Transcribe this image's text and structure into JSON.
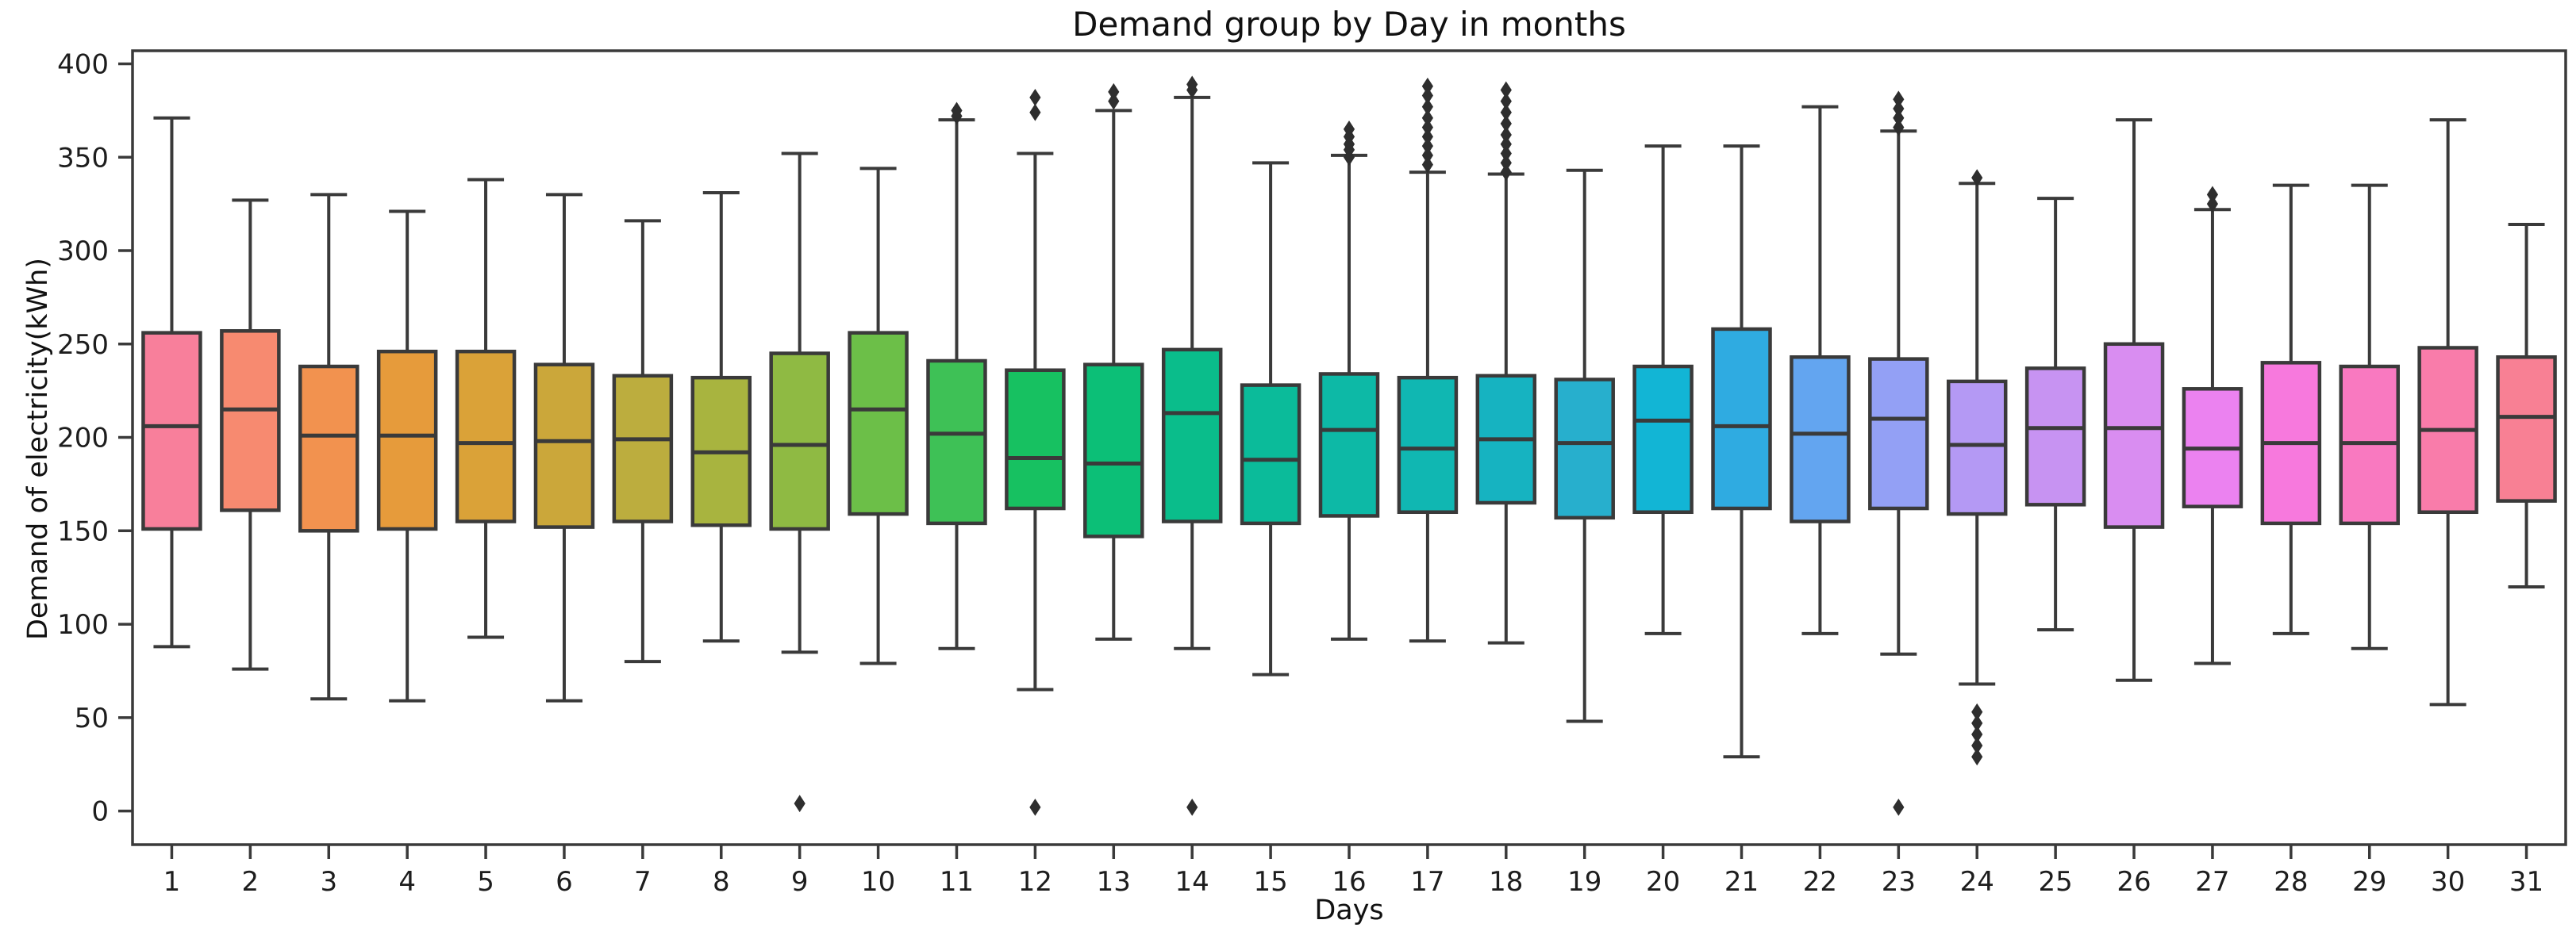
{
  "title": "Demand group by Day in months",
  "axes": {
    "xlabel": "Days",
    "ylabel": "Demand of electricity(kWh)"
  },
  "styles": {
    "background": "#ffffff",
    "spine_color": "#3a3a3a",
    "line_color": "#3a3a3a",
    "flier_color": "#2e2e2e",
    "tick_label_color": "#1d1d1d"
  },
  "chart_data": {
    "type": "boxplot",
    "title": "Demand group by Day in months",
    "xlabel": "Days",
    "ylabel": "Demand of electricity(kWh)",
    "categories": [
      "1",
      "2",
      "3",
      "4",
      "5",
      "6",
      "7",
      "8",
      "9",
      "10",
      "11",
      "12",
      "13",
      "14",
      "15",
      "16",
      "17",
      "18",
      "19",
      "20",
      "21",
      "22",
      "23",
      "24",
      "25",
      "26",
      "27",
      "28",
      "29",
      "30",
      "31"
    ],
    "yticks": [
      0,
      50,
      100,
      150,
      200,
      250,
      300,
      350,
      400
    ],
    "ylim": [
      -18,
      407
    ],
    "grid": false,
    "legend": null,
    "series": [
      {
        "day": "1",
        "color": "#f87f9b",
        "whislo": 88,
        "q1": 151,
        "med": 206,
        "q3": 256,
        "whishi": 371,
        "fliers": []
      },
      {
        "day": "2",
        "color": "#f78a70",
        "whislo": 76,
        "q1": 161,
        "med": 215,
        "q3": 257,
        "whishi": 327,
        "fliers": []
      },
      {
        "day": "3",
        "color": "#f2924f",
        "whislo": 60,
        "q1": 150,
        "med": 201,
        "q3": 238,
        "whishi": 330,
        "fliers": []
      },
      {
        "day": "4",
        "color": "#e69b3b",
        "whislo": 59,
        "q1": 151,
        "med": 201,
        "q3": 246,
        "whishi": 321,
        "fliers": []
      },
      {
        "day": "5",
        "color": "#daa238",
        "whislo": 93,
        "q1": 155,
        "med": 197,
        "q3": 246,
        "whishi": 338,
        "fliers": []
      },
      {
        "day": "6",
        "color": "#cba73a",
        "whislo": 59,
        "q1": 152,
        "med": 198,
        "q3": 239,
        "whishi": 330,
        "fliers": []
      },
      {
        "day": "7",
        "color": "#bcad3e",
        "whislo": 80,
        "q1": 155,
        "med": 199,
        "q3": 233,
        "whishi": 316,
        "fliers": []
      },
      {
        "day": "8",
        "color": "#a8b43f",
        "whislo": 91,
        "q1": 153,
        "med": 192,
        "q3": 232,
        "whishi": 331,
        "fliers": []
      },
      {
        "day": "9",
        "color": "#8fba43",
        "whislo": 85,
        "q1": 151,
        "med": 196,
        "q3": 245,
        "whishi": 352,
        "fliers": [
          4
        ]
      },
      {
        "day": "10",
        "color": "#6cbf48",
        "whislo": 79,
        "q1": 159,
        "med": 215,
        "q3": 256,
        "whishi": 344,
        "fliers": []
      },
      {
        "day": "11",
        "color": "#3ec156",
        "whislo": 87,
        "q1": 154,
        "med": 202,
        "q3": 241,
        "whishi": 370,
        "fliers": [
          372,
          375
        ]
      },
      {
        "day": "12",
        "color": "#17c161",
        "whislo": 65,
        "q1": 162,
        "med": 189,
        "q3": 236,
        "whishi": 352,
        "fliers": [
          374,
          382,
          2
        ]
      },
      {
        "day": "13",
        "color": "#0cbf77",
        "whislo": 92,
        "q1": 147,
        "med": 186,
        "q3": 239,
        "whishi": 375,
        "fliers": [
          380,
          385
        ]
      },
      {
        "day": "14",
        "color": "#0abd8b",
        "whislo": 87,
        "q1": 155,
        "med": 213,
        "q3": 247,
        "whishi": 382,
        "fliers": [
          386,
          389,
          2
        ]
      },
      {
        "day": "15",
        "color": "#0bbb9a",
        "whislo": 73,
        "q1": 154,
        "med": 188,
        "q3": 228,
        "whishi": 347,
        "fliers": []
      },
      {
        "day": "16",
        "color": "#0db9a6",
        "whislo": 92,
        "q1": 158,
        "med": 204,
        "q3": 234,
        "whishi": 351,
        "fliers": [
          350,
          354,
          357,
          361,
          365
        ]
      },
      {
        "day": "17",
        "color": "#10b7b2",
        "whislo": 91,
        "q1": 160,
        "med": 194,
        "q3": 232,
        "whishi": 342,
        "fliers": [
          346,
          351,
          356,
          361,
          366,
          371,
          377,
          383,
          388
        ]
      },
      {
        "day": "18",
        "color": "#16b3c1",
        "whislo": 90,
        "q1": 165,
        "med": 199,
        "q3": 233,
        "whishi": 341,
        "fliers": [
          342,
          347,
          352,
          357,
          362,
          368,
          374,
          380,
          386
        ]
      },
      {
        "day": "19",
        "color": "#27afcd",
        "whislo": 48,
        "q1": 157,
        "med": 197,
        "q3": 231,
        "whishi": 343,
        "fliers": []
      },
      {
        "day": "20",
        "color": "#12b5d5",
        "whislo": 95,
        "q1": 160,
        "med": 209,
        "q3": 238,
        "whishi": 356,
        "fliers": []
      },
      {
        "day": "21",
        "color": "#2fabe1",
        "whislo": 29,
        "q1": 162,
        "med": 206,
        "q3": 258,
        "whishi": 356,
        "fliers": []
      },
      {
        "day": "22",
        "color": "#63a5f0",
        "whislo": 95,
        "q1": 155,
        "med": 202,
        "q3": 243,
        "whishi": 377,
        "fliers": []
      },
      {
        "day": "23",
        "color": "#93a0f5",
        "whislo": 84,
        "q1": 162,
        "med": 210,
        "q3": 242,
        "whishi": 364,
        "fliers": [
          366,
          371,
          376,
          381,
          2
        ]
      },
      {
        "day": "24",
        "color": "#b499f4",
        "whislo": 68,
        "q1": 159,
        "med": 196,
        "q3": 230,
        "whishi": 336,
        "fliers": [
          339,
          29,
          35,
          41,
          47,
          53
        ]
      },
      {
        "day": "25",
        "color": "#c793f2",
        "whislo": 97,
        "q1": 164,
        "med": 205,
        "q3": 237,
        "whishi": 328,
        "fliers": []
      },
      {
        "day": "26",
        "color": "#d98df1",
        "whislo": 70,
        "q1": 152,
        "med": 205,
        "q3": 250,
        "whishi": 370,
        "fliers": []
      },
      {
        "day": "27",
        "color": "#eb82f0",
        "whislo": 79,
        "q1": 163,
        "med": 194,
        "q3": 226,
        "whishi": 322,
        "fliers": [
          325,
          330
        ]
      },
      {
        "day": "28",
        "color": "#f779dd",
        "whislo": 95,
        "q1": 154,
        "med": 197,
        "q3": 240,
        "whishi": 335,
        "fliers": []
      },
      {
        "day": "29",
        "color": "#f979c0",
        "whislo": 87,
        "q1": 154,
        "med": 197,
        "q3": 238,
        "whishi": 335,
        "fliers": []
      },
      {
        "day": "30",
        "color": "#f97caa",
        "whislo": 57,
        "q1": 160,
        "med": 204,
        "q3": 248,
        "whishi": 370,
        "fliers": []
      },
      {
        "day": "31",
        "color": "#f88094",
        "whislo": 120,
        "q1": 166,
        "med": 211,
        "q3": 243,
        "whishi": 314,
        "fliers": []
      }
    ]
  }
}
